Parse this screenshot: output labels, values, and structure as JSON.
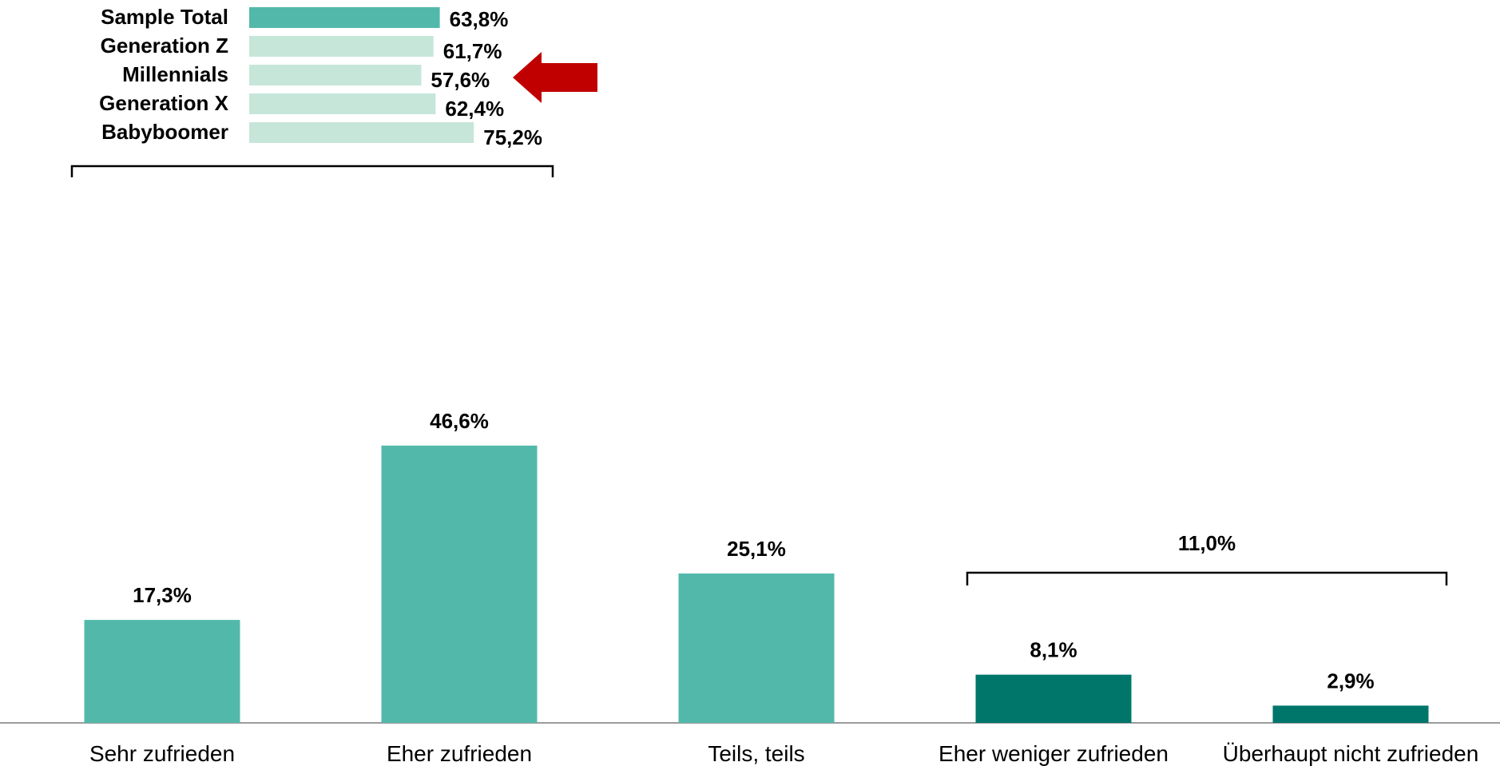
{
  "chart_data": [
    {
      "type": "bar",
      "categories": [
        "Sehr zufrieden",
        "Eher zufrieden",
        "Teils, teils",
        "Eher weniger zufrieden",
        "Überhaupt nicht zufrieden"
      ],
      "values": [
        17.3,
        46.6,
        25.1,
        8.1,
        2.9
      ],
      "value_labels": [
        "17,3%",
        "46,6%",
        "25,1%",
        "8,1%",
        "2,9%"
      ],
      "colors": [
        "#52b9aa",
        "#52b9aa",
        "#52b9aa",
        "#00766b",
        "#00766b"
      ],
      "ylim": [
        0,
        50
      ],
      "grid": false,
      "groups": [
        {
          "span": [
            "Sehr zufrieden",
            "Eher zufrieden"
          ],
          "value": 63.8
        },
        {
          "span": [
            "Eher weniger zufrieden",
            "Überhaupt nicht zufrieden"
          ],
          "value": 11.0,
          "label": "11,0%"
        }
      ]
    },
    {
      "type": "bar",
      "orientation": "horizontal",
      "categories": [
        "Sample Total",
        "Generation Z",
        "Millennials",
        "Generation X",
        "Babyboomer"
      ],
      "values": [
        63.8,
        61.7,
        57.6,
        62.4,
        75.2
      ],
      "value_labels": [
        "63,8%",
        "61,7%",
        "57,6%",
        "62,4%",
        "75,2%"
      ],
      "colors": [
        "#52b9aa",
        "#c6e6d9",
        "#c6e6d9",
        "#c6e6d9",
        "#c6e6d9"
      ],
      "highlight": "Millennials",
      "highlight_color": "#c00000",
      "xlim": [
        0,
        100
      ]
    }
  ]
}
